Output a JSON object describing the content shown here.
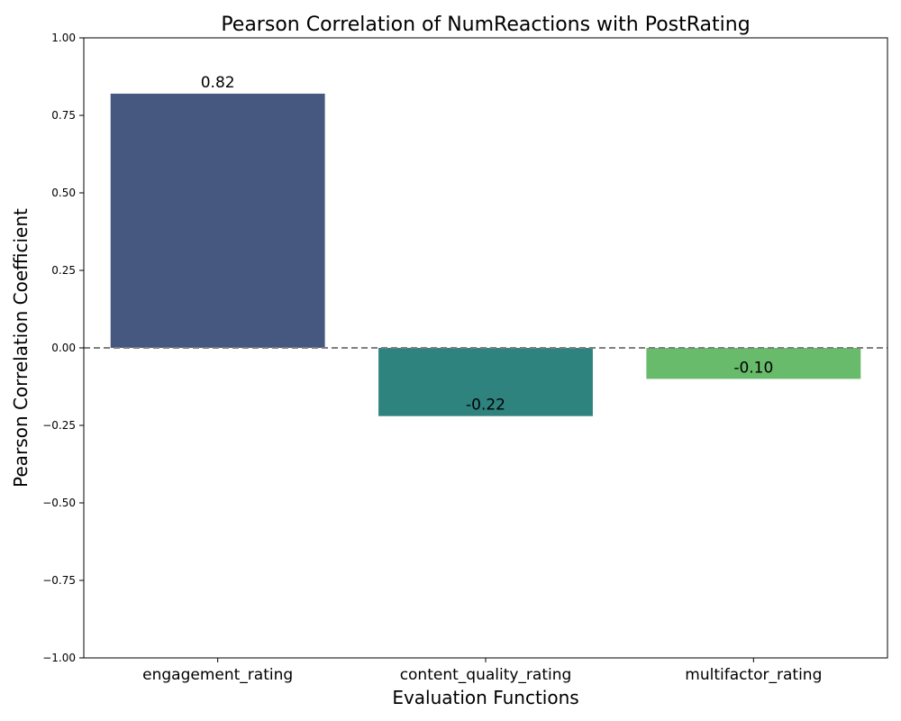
{
  "chart_data": {
    "type": "bar",
    "title": "Pearson Correlation of NumReactions with PostRating",
    "xlabel": "Evaluation Functions",
    "ylabel": "Pearson Correlation Coefficient",
    "categories": [
      "engagement_rating",
      "content_quality_rating",
      "multifactor_rating"
    ],
    "values": [
      0.82,
      -0.22,
      -0.1
    ],
    "data_labels": [
      "0.82",
      "-0.22",
      "-0.10"
    ],
    "colors": [
      "#46587f",
      "#2e837f",
      "#68bb6a"
    ],
    "ylim": [
      -1.0,
      1.0
    ],
    "yticks": [
      -1.0,
      -0.75,
      -0.5,
      -0.25,
      0.0,
      0.25,
      0.5,
      0.75,
      1.0
    ],
    "ytick_labels": [
      "−1.00",
      "−0.75",
      "−0.50",
      "−0.25",
      "0.00",
      "0.25",
      "0.50",
      "0.75",
      "1.00"
    ],
    "reference_line": {
      "y": 0.0,
      "style": "dashed",
      "color": "#808080"
    },
    "grid": false,
    "legend": "none"
  }
}
